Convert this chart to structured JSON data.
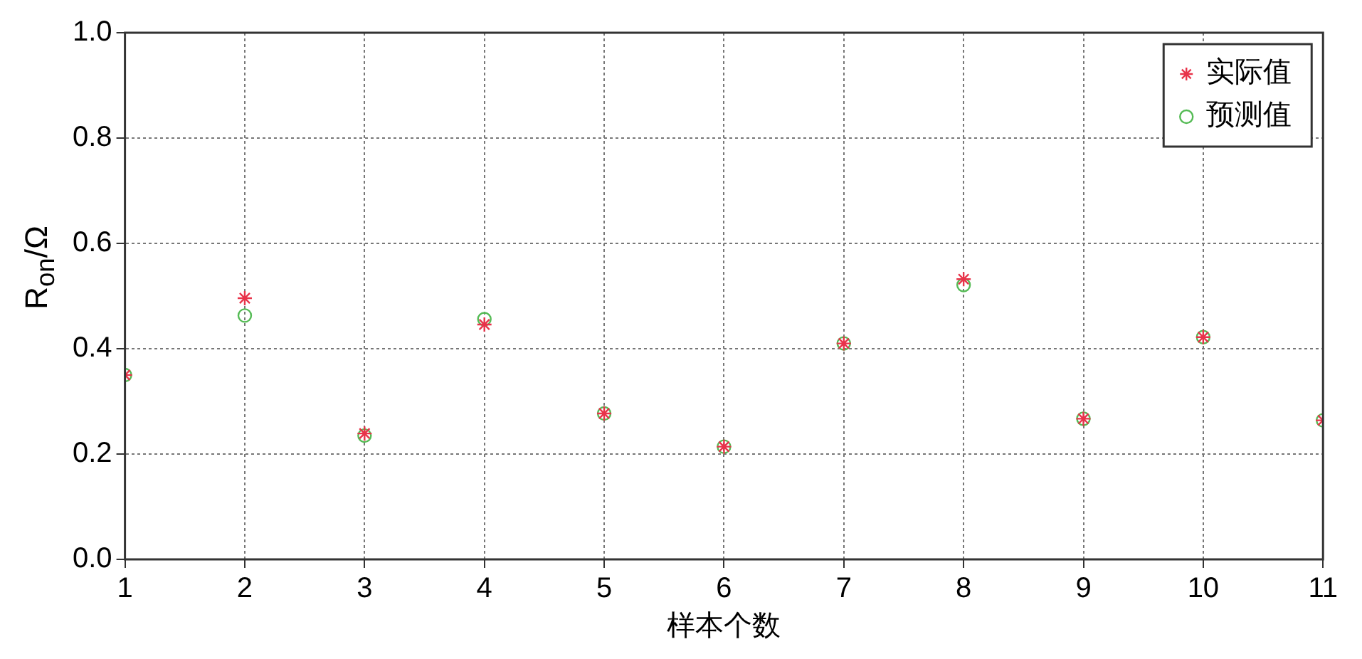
{
  "chart_data": {
    "type": "scatter",
    "xlabel": "样本个数",
    "ylabel": "R$_{on}$/Ω",
    "x": [
      1,
      2,
      3,
      4,
      5,
      6,
      7,
      8,
      9,
      10,
      11
    ],
    "xlim": [
      1,
      11
    ],
    "xticks": [
      1,
      2,
      3,
      4,
      5,
      6,
      7,
      8,
      9,
      10,
      11
    ],
    "ylim": [
      0,
      1
    ],
    "yticks": [
      {
        "value": 0,
        "label": "0.0"
      },
      0.2,
      0.4,
      0.6,
      0.8,
      {
        "value": 1,
        "label": "1.0"
      }
    ],
    "grid": true,
    "legend": "top right",
    "series": [
      {
        "name": "实际值",
        "color": "#e8334a",
        "marker": "cross",
        "values": [
          0.35,
          0.496,
          0.239,
          0.446,
          0.277,
          0.214,
          0.41,
          0.532,
          0.267,
          0.422,
          0.264
        ]
      },
      {
        "name": "预测值",
        "color": "#55bb55",
        "marker": "circle",
        "values": [
          0.35,
          0.463,
          0.235,
          0.456,
          0.277,
          0.214,
          0.41,
          0.521,
          0.267,
          0.422,
          0.264
        ]
      }
    ]
  }
}
